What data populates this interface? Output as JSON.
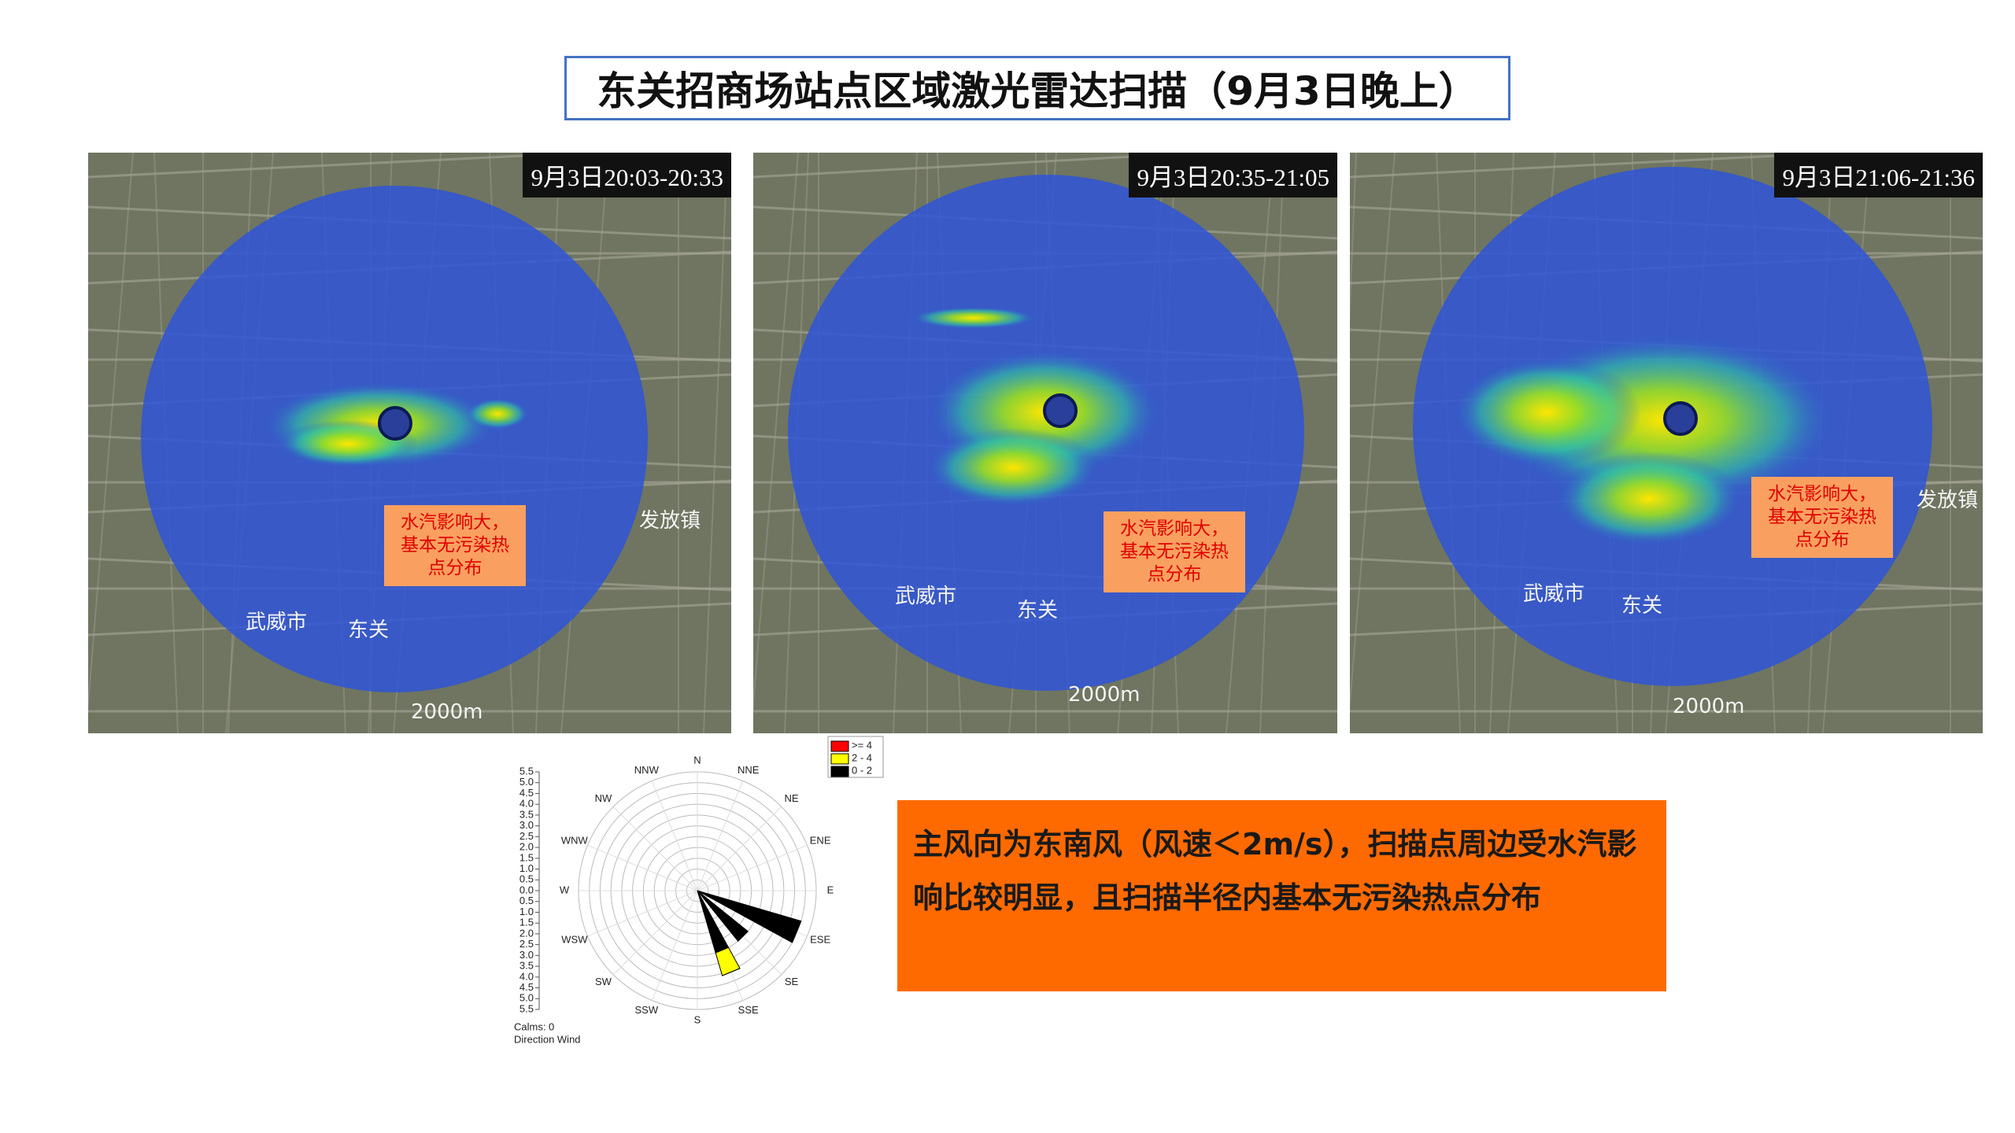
{
  "title": "东关招商场站点区域激光雷达扫描（9月3日晚上）",
  "panels": [
    {
      "time": "9月3日20:03-20:33",
      "note": "水汽影响大，基本无污染热点分布",
      "map_labels": [
        "武威市",
        "东关",
        "发放镇",
        "2000m"
      ]
    },
    {
      "time": "9月3日20:35-21:05",
      "note": "水汽影响大，基本无污染热点分布",
      "map_labels": [
        "武威市",
        "东关",
        "2000m"
      ]
    },
    {
      "time": "9月3日21:06-21:36",
      "note": "水汽影响大，基本无污染热点分布",
      "map_labels": [
        "武威市",
        "东关",
        "发放镇",
        "2000m"
      ]
    }
  ],
  "wind_rose": {
    "type": "wind_rose",
    "directions": [
      "N",
      "NNE",
      "NE",
      "ENE",
      "E",
      "ESE",
      "SE",
      "SSE",
      "S",
      "SSW",
      "SW",
      "WSW",
      "W",
      "WNW",
      "NW",
      "NNW"
    ],
    "rlim": [
      0,
      5.5
    ],
    "rticks": [
      {
        "value": 0,
        "label": "0.0"
      },
      0.5,
      {
        "value": 1,
        "label": "1.0"
      },
      1.5,
      {
        "value": 2,
        "label": "2.0"
      },
      2.5,
      {
        "value": 3,
        "label": "3.0"
      },
      3.5,
      {
        "value": 4,
        "label": "4.0"
      },
      4.5,
      {
        "value": 5,
        "label": "5.0"
      },
      5.5
    ],
    "series": [
      {
        "name": ">= 4",
        "color": "#ff0000",
        "values": [
          0,
          0,
          0,
          0,
          0,
          0,
          0,
          0,
          0,
          0,
          0,
          0,
          0,
          0,
          0,
          0
        ]
      },
      {
        "name": "2 - 4",
        "color": "#ffff00",
        "values": [
          0,
          0,
          0,
          0,
          0,
          0,
          0,
          1.1,
          0,
          0,
          0,
          0,
          0,
          0,
          0,
          0
        ]
      },
      {
        "name": "0 - 2",
        "color": "#000000",
        "values": [
          0,
          0,
          0,
          0,
          0,
          5.0,
          3.0,
          3.0,
          0,
          0,
          0,
          0,
          0,
          0,
          0,
          0
        ]
      }
    ],
    "calms": "Calms: 0",
    "caption": "Direction Wind"
  },
  "summary": "主风向为东南风（风速＜2m/s），扫描点周边受水汽影响比较明显，且扫描半径内基本无污染热点分布"
}
